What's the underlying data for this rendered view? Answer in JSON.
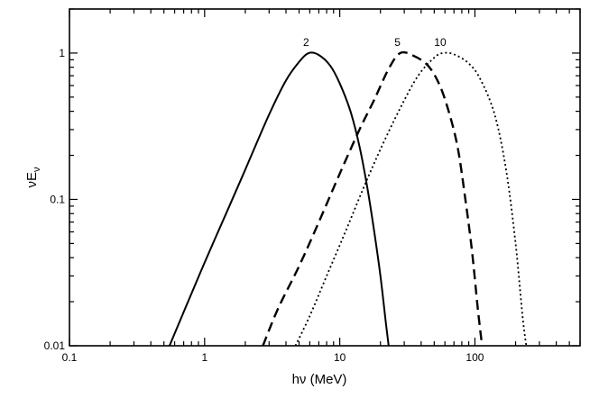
{
  "chart_data": {
    "type": "line",
    "title": "",
    "xlabel": "hν (MeV)",
    "ylabel": "νE",
    "ylabel_subscript": "ν",
    "xscale": "log",
    "yscale": "log",
    "xlim": [
      0.1,
      600
    ],
    "ylim": [
      0.01,
      2
    ],
    "grid": false,
    "legend": "none",
    "x_tick_labels": [
      "0.1",
      "1",
      "10",
      "100"
    ],
    "y_tick_labels": [
      "0.01",
      "0.1",
      "1"
    ],
    "series": [
      {
        "label": "2",
        "style": "solid",
        "x": [
          0.55,
          0.7,
          1.0,
          1.5,
          2.0,
          3.0,
          4.0,
          5.0,
          5.9,
          7.0,
          8.5,
          10.0,
          12.0,
          14.0,
          16.0,
          18.0,
          20.0,
          22.0,
          23.0
        ],
        "y": [
          0.01,
          0.017,
          0.037,
          0.087,
          0.16,
          0.38,
          0.65,
          0.87,
          1.0,
          0.97,
          0.82,
          0.62,
          0.4,
          0.23,
          0.12,
          0.06,
          0.03,
          0.014,
          0.01
        ]
      },
      {
        "label": "5",
        "style": "dashed",
        "x": [
          2.7,
          3.5,
          5.0,
          7.0,
          10.0,
          14.0,
          18.0,
          23.0,
          28.0,
          35.0,
          45.0,
          55.0,
          65.0,
          75.0,
          85.0,
          95.0,
          105.0,
          113.0
        ],
        "y": [
          0.01,
          0.018,
          0.035,
          0.07,
          0.15,
          0.3,
          0.48,
          0.78,
          1.0,
          0.96,
          0.82,
          0.6,
          0.38,
          0.22,
          0.1,
          0.045,
          0.018,
          0.01
        ]
      },
      {
        "label": "10",
        "style": "dotted",
        "x": [
          4.7,
          6.0,
          8.0,
          11.0,
          15.0,
          20.0,
          28.0,
          38.0,
          50.0,
          58.0,
          70.0,
          90.0,
          110.0,
          140.0,
          170.0,
          200.0,
          225.0,
          240.0
        ],
        "y": [
          0.01,
          0.016,
          0.03,
          0.06,
          0.12,
          0.22,
          0.42,
          0.7,
          0.93,
          1.0,
          0.98,
          0.85,
          0.66,
          0.38,
          0.16,
          0.05,
          0.016,
          0.01
        ]
      }
    ]
  }
}
